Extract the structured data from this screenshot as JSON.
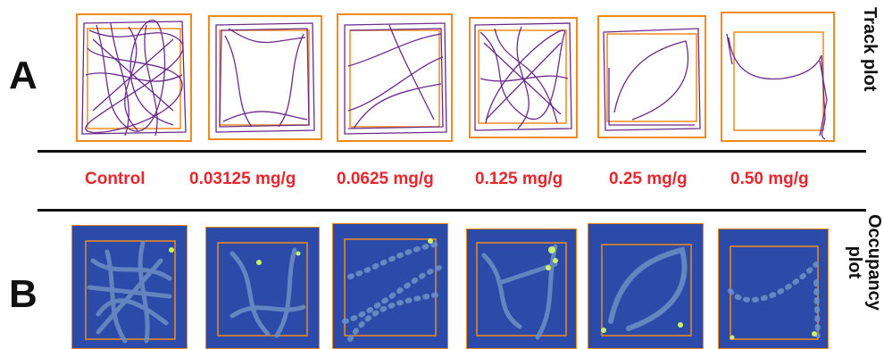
{
  "panels": {
    "a_label": "A",
    "b_label": "B",
    "track_label": "Track plot",
    "occupancy_label_line1": "Occupancy",
    "occupancy_label_line2": "plot"
  },
  "doses": [
    "Control",
    "0.03125 mg/g",
    "0.0625 mg/g",
    "0.125 mg/g",
    "0.25 mg/g",
    "0.50 mg/g"
  ],
  "colors": {
    "track": "#6b2a8a",
    "arena_outline": "#f08a1c",
    "dose_text": "#e8262e",
    "heatmap_bg": "#2c4aa8",
    "heatmap_path": "#6d8fc4",
    "heatmap_hot": "#c7f26a"
  }
}
